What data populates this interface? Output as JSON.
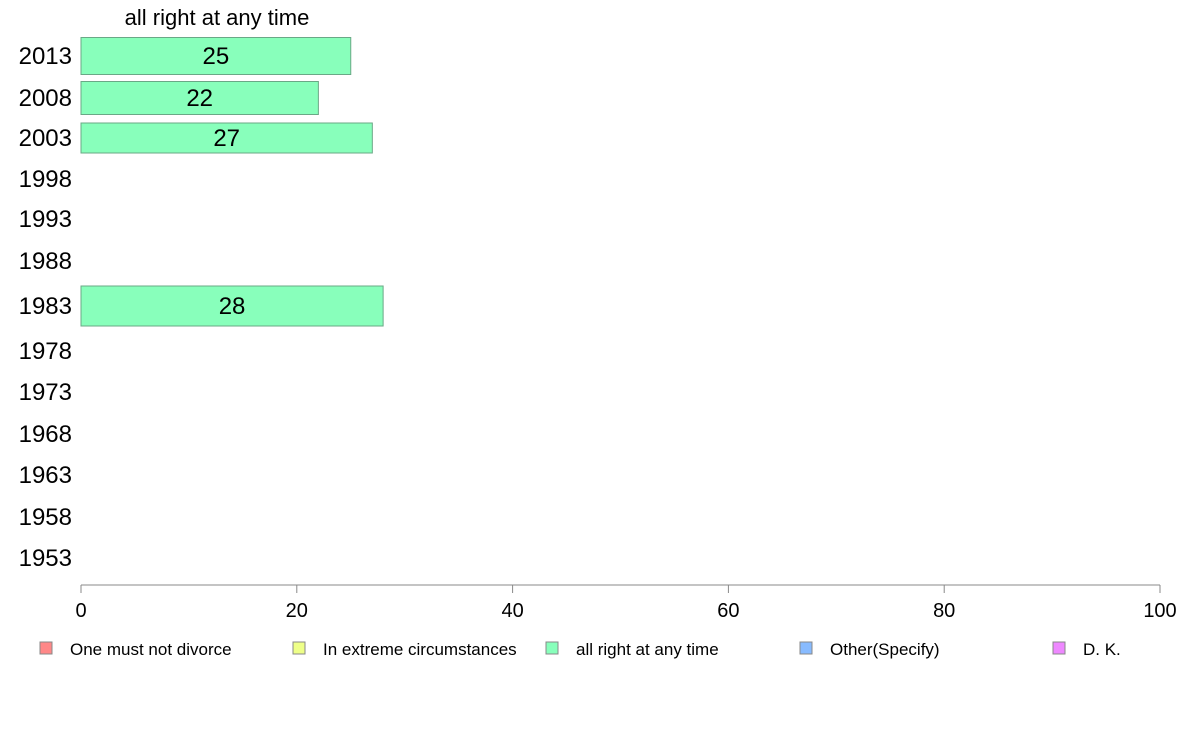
{
  "chart_data": {
    "type": "bar",
    "orientation": "horizontal",
    "title": "all right at any time",
    "categories": [
      "2013",
      "2008",
      "2003",
      "1998",
      "1993",
      "1988",
      "1983",
      "1978",
      "1973",
      "1968",
      "1963",
      "1958",
      "1953"
    ],
    "series": [
      {
        "name": "all right at any time",
        "color": "#88ffbb",
        "values": [
          25,
          22,
          27,
          null,
          null,
          null,
          28,
          null,
          null,
          null,
          null,
          null,
          null
        ]
      }
    ],
    "xlim": [
      0,
      100
    ],
    "xticks": [
      0,
      20,
      40,
      60,
      80,
      100
    ],
    "grid": false,
    "legend": {
      "placement": "bottom",
      "entries": [
        {
          "label": "One must not divorce",
          "color": "#ff8888"
        },
        {
          "label": "In extreme circumstances",
          "color": "#eeff88"
        },
        {
          "label": "all right at any time",
          "color": "#88ffbb"
        },
        {
          "label": "Other(Specify)",
          "color": "#88bbff"
        },
        {
          "label": "D. K.",
          "color": "#ee88ff"
        }
      ]
    }
  }
}
